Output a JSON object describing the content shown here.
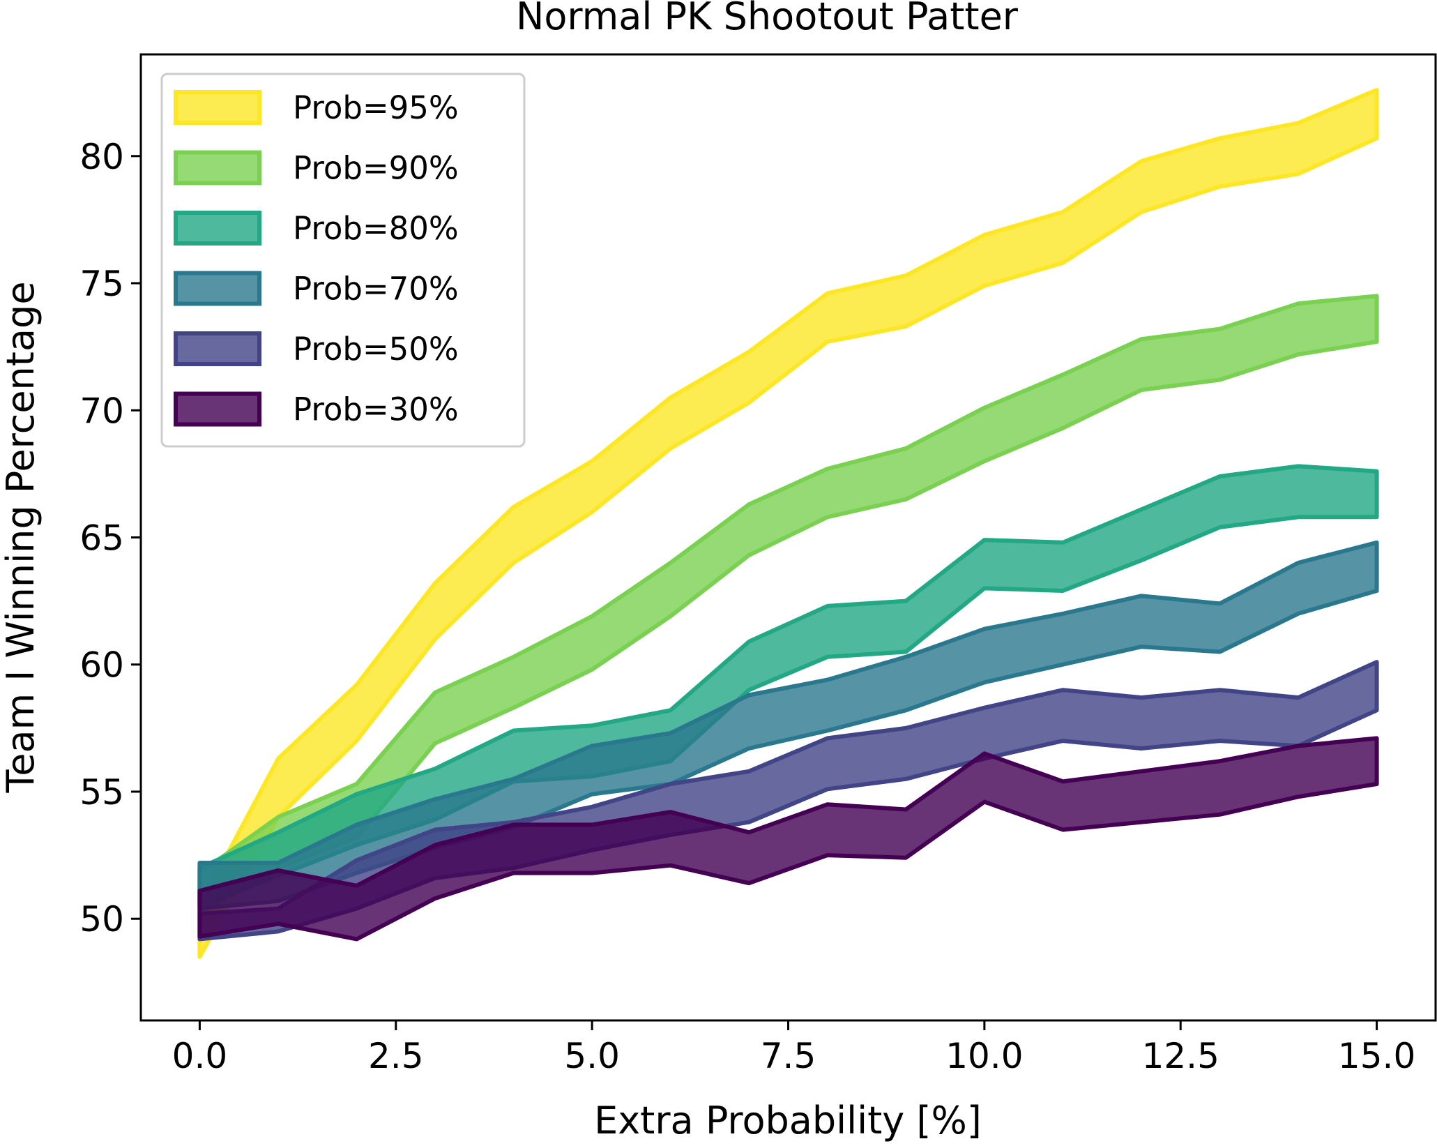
{
  "chart_data": {
    "type": "area",
    "title": "Normal PK Shootout Patter",
    "xlabel": "Extra Probability [%]",
    "ylabel": "Team I Winning Percentage",
    "xlim": [
      -0.75,
      15.75
    ],
    "ylim": [
      46.0,
      84.0
    ],
    "xticks": [
      0.0,
      2.5,
      5.0,
      7.5,
      10.0,
      12.5,
      15.0
    ],
    "xtick_labels": [
      "0.0",
      "2.5",
      "5.0",
      "7.5",
      "10.0",
      "12.5",
      "15.0"
    ],
    "yticks": [
      50,
      55,
      60,
      65,
      70,
      75,
      80
    ],
    "ytick_labels": [
      "50",
      "55",
      "60",
      "65",
      "70",
      "75",
      "80"
    ],
    "grid": false,
    "legend_position": "top-left",
    "x": [
      0,
      1,
      2,
      3,
      4,
      5,
      6,
      7,
      8,
      9,
      10,
      11,
      12,
      13,
      14,
      15
    ],
    "series": [
      {
        "name": "Prob=95%",
        "color": "#fde725",
        "lower": [
          48.5,
          54.0,
          57.0,
          61.0,
          64.0,
          66.0,
          68.5,
          70.3,
          72.7,
          73.3,
          74.9,
          75.8,
          77.8,
          78.8,
          79.3,
          80.7
        ],
        "upper": [
          50.5,
          56.3,
          59.2,
          63.2,
          66.2,
          68.0,
          70.5,
          72.3,
          74.6,
          75.3,
          76.9,
          77.8,
          79.8,
          80.7,
          81.3,
          82.6
        ]
      },
      {
        "name": "Prob=90%",
        "color": "#7ad151",
        "lower": [
          50.2,
          52.0,
          53.2,
          56.9,
          58.3,
          59.8,
          61.9,
          64.3,
          65.8,
          66.5,
          68.0,
          69.3,
          70.8,
          71.2,
          72.2,
          72.7
        ],
        "upper": [
          51.8,
          54.0,
          55.3,
          58.9,
          60.3,
          61.9,
          64.0,
          66.3,
          67.7,
          68.5,
          70.1,
          71.4,
          72.8,
          73.2,
          74.2,
          74.5
        ]
      },
      {
        "name": "Prob=80%",
        "color": "#22a884",
        "lower": [
          50.5,
          51.7,
          52.9,
          53.9,
          55.4,
          55.6,
          56.2,
          59.0,
          60.3,
          60.5,
          63.0,
          62.9,
          64.1,
          65.4,
          65.8,
          65.8
        ],
        "upper": [
          52.0,
          53.4,
          54.9,
          55.9,
          57.4,
          57.6,
          58.2,
          60.9,
          62.3,
          62.5,
          64.9,
          64.8,
          66.1,
          67.4,
          67.8,
          67.6
        ]
      },
      {
        "name": "Prob=70%",
        "color": "#2a788e",
        "lower": [
          50.4,
          50.7,
          51.8,
          52.8,
          53.6,
          54.9,
          55.3,
          56.7,
          57.4,
          58.2,
          59.3,
          60.0,
          60.7,
          60.5,
          62.0,
          62.9
        ],
        "upper": [
          52.2,
          52.2,
          53.7,
          54.7,
          55.5,
          56.8,
          57.3,
          58.8,
          59.4,
          60.3,
          61.4,
          62.0,
          62.7,
          62.4,
          64.0,
          64.8
        ]
      },
      {
        "name": "Prob=50%",
        "color": "#414487",
        "lower": [
          49.2,
          49.5,
          50.4,
          51.6,
          52.0,
          52.7,
          53.3,
          53.8,
          55.1,
          55.5,
          56.3,
          57.0,
          56.7,
          57.0,
          56.8,
          58.2
        ],
        "upper": [
          50.2,
          50.4,
          52.3,
          53.5,
          53.8,
          54.4,
          55.3,
          55.8,
          57.1,
          57.5,
          58.3,
          59.0,
          58.7,
          59.0,
          58.7,
          60.1
        ]
      },
      {
        "name": "Prob=30%",
        "color": "#440154",
        "lower": [
          49.3,
          49.8,
          49.2,
          50.8,
          51.8,
          51.8,
          52.1,
          51.4,
          52.5,
          52.4,
          54.6,
          53.5,
          53.8,
          54.1,
          54.8,
          55.3
        ],
        "upper": [
          51.1,
          51.9,
          51.3,
          52.9,
          53.7,
          53.7,
          54.2,
          53.4,
          54.5,
          54.3,
          56.5,
          55.4,
          55.8,
          56.2,
          56.8,
          57.1
        ]
      }
    ]
  }
}
